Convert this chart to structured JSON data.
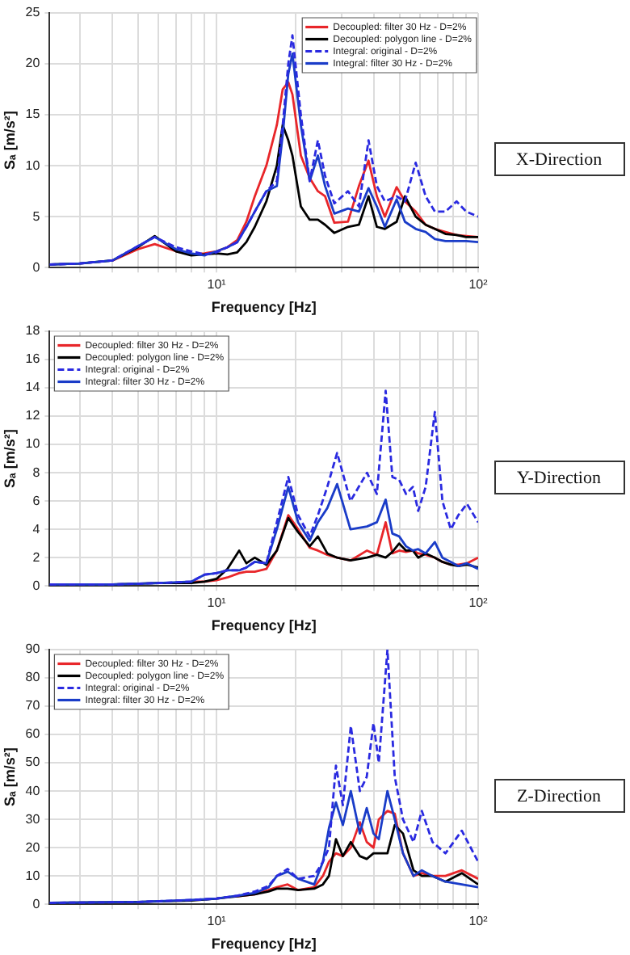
{
  "chart_data": [
    {
      "type": "line",
      "annotations": [
        "X-Direction"
      ],
      "xlabel": "Frequency [Hz]",
      "ylabel": "Sₐ [m/s²]",
      "log": "x",
      "grid": true,
      "legend": "top right",
      "xlim": [
        2.3,
        100
      ],
      "xticks": [
        {
          "value": 3,
          "label": null
        },
        {
          "value": 4,
          "label": null
        },
        {
          "value": 5,
          "label": null
        },
        {
          "value": 6,
          "label": null
        },
        {
          "value": 7,
          "label": null
        },
        {
          "value": 8,
          "label": null
        },
        {
          "value": 9,
          "label": null
        },
        {
          "value": 10,
          "label": "10¹"
        },
        {
          "value": 20,
          "label": null
        },
        {
          "value": 30,
          "label": null
        },
        {
          "value": 40,
          "label": null
        },
        {
          "value": 50,
          "label": null
        },
        {
          "value": 60,
          "label": null
        },
        {
          "value": 70,
          "label": null
        },
        {
          "value": 80,
          "label": null
        },
        {
          "value": 90,
          "label": null
        },
        {
          "value": 100,
          "label": "10²"
        }
      ],
      "ylim": [
        0,
        25
      ],
      "yticks": [
        0,
        5,
        10,
        15,
        20,
        25
      ],
      "x": [
        2.3,
        3,
        4,
        5,
        5.8,
        7,
        8,
        9,
        10,
        11,
        12,
        13,
        14,
        15.5,
        17,
        17.9,
        18.8,
        19.5,
        21,
        22.7,
        24.4,
        26,
        28.2,
        31.8,
        35,
        38.1,
        41,
        44,
        48.8,
        52.5,
        57.7,
        63,
        68.3,
        75,
        82.7,
        90,
        100
      ],
      "series": [
        {
          "name": "Decoupled: filter 30 Hz - D=2%",
          "color": "#e8262a",
          "line_style": "solid",
          "values": [
            null,
            null,
            0.7,
            1.8,
            2.3,
            1.6,
            1.3,
            1.4,
            1.6,
            2.0,
            2.7,
            4.5,
            7,
            10,
            14,
            17.5,
            18.2,
            17,
            11,
            8.8,
            7.5,
            7,
            4.4,
            4.5,
            8,
            10.5,
            7,
            5,
            7.9,
            6.5,
            5.5,
            4.2,
            3.8,
            3.5,
            3.2,
            3.1,
            3.0
          ]
        },
        {
          "name": "Decoupled: polygon line - D=2%",
          "color": "#000000",
          "line_style": "solid",
          "values": [
            0.3,
            0.4,
            0.7,
            2.0,
            3.1,
            1.6,
            1.2,
            1.3,
            1.4,
            1.3,
            1.5,
            2.5,
            4,
            6.5,
            10,
            14,
            12.5,
            11,
            6,
            4.7,
            4.7,
            4.2,
            3.4,
            4,
            4.2,
            7.0,
            4,
            3.8,
            4.5,
            7,
            5,
            4.2,
            3.8,
            3.3,
            3.2,
            3.0,
            3.0
          ]
        },
        {
          "name": "Integral: original - D=2%",
          "color": "#2a2ae0",
          "line_style": "dashed",
          "values": [
            0.3,
            0.4,
            0.7,
            2.1,
            3.0,
            2.0,
            1.6,
            1.3,
            1.5,
            2.0,
            2.5,
            4.0,
            5.5,
            7.5,
            8.5,
            14,
            20,
            22.8,
            15,
            8.5,
            12.5,
            9,
            6.3,
            7.5,
            6,
            12.5,
            8,
            6.5,
            7,
            6.5,
            10.3,
            7,
            5.5,
            5.5,
            6.5,
            5.5,
            5.0
          ]
        },
        {
          "name": "Integral: filter 30 Hz - D=2%",
          "color": "#1a3cc8",
          "line_style": "solid",
          "values": [
            0.3,
            0.4,
            0.7,
            2.1,
            3.0,
            1.8,
            1.4,
            1.2,
            1.6,
            2.0,
            2.5,
            4.0,
            5.5,
            7.5,
            8,
            13,
            19,
            21,
            14,
            8.5,
            11,
            8,
            5.3,
            5.8,
            5.5,
            7.8,
            6,
            4,
            6.7,
            4.5,
            3.8,
            3.5,
            2.8,
            2.6,
            2.6,
            2.6,
            2.5
          ]
        }
      ]
    },
    {
      "type": "line",
      "annotations": [
        "Y-Direction"
      ],
      "xlabel": "Frequency [Hz]",
      "ylabel": "Sₐ [m/s²]",
      "log": "x",
      "grid": true,
      "legend": "top left",
      "xlim": [
        2.3,
        100
      ],
      "xticks": [
        {
          "value": 3,
          "label": null
        },
        {
          "value": 4,
          "label": null
        },
        {
          "value": 5,
          "label": null
        },
        {
          "value": 6,
          "label": null
        },
        {
          "value": 7,
          "label": null
        },
        {
          "value": 8,
          "label": null
        },
        {
          "value": 9,
          "label": null
        },
        {
          "value": 10,
          "label": "10¹"
        },
        {
          "value": 20,
          "label": null
        },
        {
          "value": 30,
          "label": null
        },
        {
          "value": 40,
          "label": null
        },
        {
          "value": 50,
          "label": null
        },
        {
          "value": 60,
          "label": null
        },
        {
          "value": 70,
          "label": null
        },
        {
          "value": 80,
          "label": null
        },
        {
          "value": 90,
          "label": null
        },
        {
          "value": 100,
          "label": "10²"
        }
      ],
      "ylim": [
        0,
        18
      ],
      "yticks": [
        0,
        2,
        4,
        6,
        8,
        10,
        12,
        14,
        16,
        18
      ],
      "x": [
        2.3,
        4,
        6,
        8,
        9,
        10,
        11,
        12.2,
        13,
        14,
        15.5,
        17,
        18.8,
        20.5,
        22.7,
        24.4,
        26.5,
        28.9,
        32.5,
        37.6,
        41,
        44.3,
        47,
        49.9,
        53,
        56.3,
        59,
        63,
        68.3,
        73,
        78.6,
        84,
        90.6,
        100
      ],
      "series": [
        {
          "name": "Decoupled: filter 30 Hz - D=2%",
          "color": "#e8262a",
          "line_style": "solid",
          "values": [
            null,
            null,
            null,
            0.3,
            0.3,
            0.4,
            0.6,
            0.9,
            1.0,
            1.0,
            1.2,
            2.5,
            5.0,
            4.0,
            2.7,
            2.5,
            2.2,
            2.0,
            1.8,
            2.5,
            2.2,
            4.5,
            2.3,
            2.5,
            2.4,
            2.5,
            2.3,
            2.2,
            2.0,
            1.7,
            1.5,
            1.5,
            1.6,
            2.0
          ]
        },
        {
          "name": "Decoupled: polygon line - D=2%",
          "color": "#000000",
          "line_style": "solid",
          "values": [
            0.1,
            0.1,
            0.2,
            0.2,
            0.3,
            0.5,
            1.2,
            2.5,
            1.6,
            2.0,
            1.5,
            2.5,
            4.8,
            3.8,
            2.8,
            3.5,
            2.3,
            2.0,
            1.8,
            2.0,
            2.2,
            2.0,
            2.4,
            3.0,
            2.5,
            2.5,
            2.0,
            2.3,
            2.0,
            1.7,
            1.5,
            1.4,
            1.5,
            1.3
          ]
        },
        {
          "name": "Integral: original - D=2%",
          "color": "#2a2ae0",
          "line_style": "dashed",
          "values": [
            0.1,
            0.1,
            0.2,
            0.3,
            0.8,
            0.9,
            1.1,
            1.1,
            1.3,
            1.7,
            1.6,
            4.5,
            7.7,
            5.0,
            3.5,
            5.0,
            7.0,
            9.4,
            6.0,
            8.0,
            6.5,
            13.8,
            7.7,
            7.5,
            6.5,
            7.0,
            5.3,
            7.0,
            12.3,
            6.0,
            4.0,
            5.0,
            5.8,
            4.5
          ]
        },
        {
          "name": "Integral: filter 30 Hz - D=2%",
          "color": "#1a3cc8",
          "line_style": "solid",
          "values": [
            0.1,
            0.1,
            0.2,
            0.3,
            0.8,
            0.9,
            1.1,
            1.1,
            1.3,
            1.7,
            1.6,
            4.0,
            7.0,
            4.5,
            3.2,
            4.5,
            5.5,
            7.2,
            4.0,
            4.2,
            4.5,
            6.1,
            3.7,
            3.5,
            2.8,
            2.5,
            2.6,
            2.3,
            3.1,
            2.0,
            1.7,
            1.4,
            1.6,
            1.2
          ]
        }
      ]
    },
    {
      "type": "line",
      "annotations": [
        "Z-Direction"
      ],
      "xlabel": "Frequency [Hz]",
      "ylabel": "Sₐ [m/s²]",
      "log": "x",
      "grid": true,
      "legend": "top left",
      "xlim": [
        2.3,
        100
      ],
      "xticks": [
        {
          "value": 3,
          "label": null
        },
        {
          "value": 4,
          "label": null
        },
        {
          "value": 5,
          "label": null
        },
        {
          "value": 6,
          "label": null
        },
        {
          "value": 7,
          "label": null
        },
        {
          "value": 8,
          "label": null
        },
        {
          "value": 9,
          "label": null
        },
        {
          "value": 10,
          "label": "10¹"
        },
        {
          "value": 20,
          "label": null
        },
        {
          "value": 30,
          "label": null
        },
        {
          "value": 40,
          "label": null
        },
        {
          "value": 50,
          "label": null
        },
        {
          "value": 60,
          "label": null
        },
        {
          "value": 70,
          "label": null
        },
        {
          "value": 80,
          "label": null
        },
        {
          "value": 90,
          "label": null
        },
        {
          "value": 100,
          "label": "10²"
        }
      ],
      "ylim": [
        0,
        90
      ],
      "yticks": [
        0,
        10,
        20,
        30,
        40,
        50,
        60,
        70,
        80,
        90
      ],
      "x": [
        2.3,
        5,
        8,
        10,
        12,
        14,
        15.8,
        17,
        18.7,
        20.5,
        23.6,
        25.5,
        26.9,
        28.6,
        30.4,
        32.6,
        35.3,
        37.5,
        39.8,
        41.7,
        45,
        48,
        51.6,
        56.6,
        60.9,
        66.9,
        75,
        86.6,
        100
      ],
      "series": [
        {
          "name": "Decoupled: filter 30 Hz - D=2%",
          "color": "#e8262a",
          "line_style": "solid",
          "values": [
            null,
            null,
            null,
            null,
            2.8,
            3.5,
            5,
            6,
            7,
            5,
            6,
            10,
            15,
            18,
            17,
            20,
            29,
            22,
            20,
            30,
            33,
            32,
            18,
            10,
            11,
            10,
            10,
            12,
            9
          ]
        },
        {
          "name": "Decoupled: polygon line - D=2%",
          "color": "#000000",
          "line_style": "solid",
          "values": [
            0.5,
            0.8,
            1.3,
            2,
            2.8,
            3.5,
            4.5,
            5.5,
            5.5,
            5,
            5.5,
            7,
            10,
            23,
            17,
            22,
            17,
            16,
            18,
            18,
            18,
            28,
            25,
            12,
            10,
            10,
            8,
            11,
            7
          ]
        },
        {
          "name": "Integral: original - D=2%",
          "color": "#2a2ae0",
          "line_style": "dashed",
          "values": [
            0.5,
            0.8,
            1.5,
            2,
            3,
            4.5,
            6.5,
            10,
            12.5,
            9,
            10,
            15,
            20,
            49,
            35,
            63,
            40,
            45,
            64,
            50,
            90,
            45,
            30,
            22,
            33,
            22,
            18,
            26,
            15
          ]
        },
        {
          "name": "Integral: filter 30 Hz - D=2%",
          "color": "#1a3cc8",
          "line_style": "solid",
          "values": [
            0.5,
            0.8,
            1.5,
            2,
            3,
            4,
            6,
            10,
            11.5,
            9,
            7,
            15,
            27,
            36,
            28,
            40,
            25,
            34,
            25,
            23,
            40,
            30,
            18,
            10,
            12,
            10,
            8,
            7,
            6
          ]
        }
      ]
    }
  ]
}
